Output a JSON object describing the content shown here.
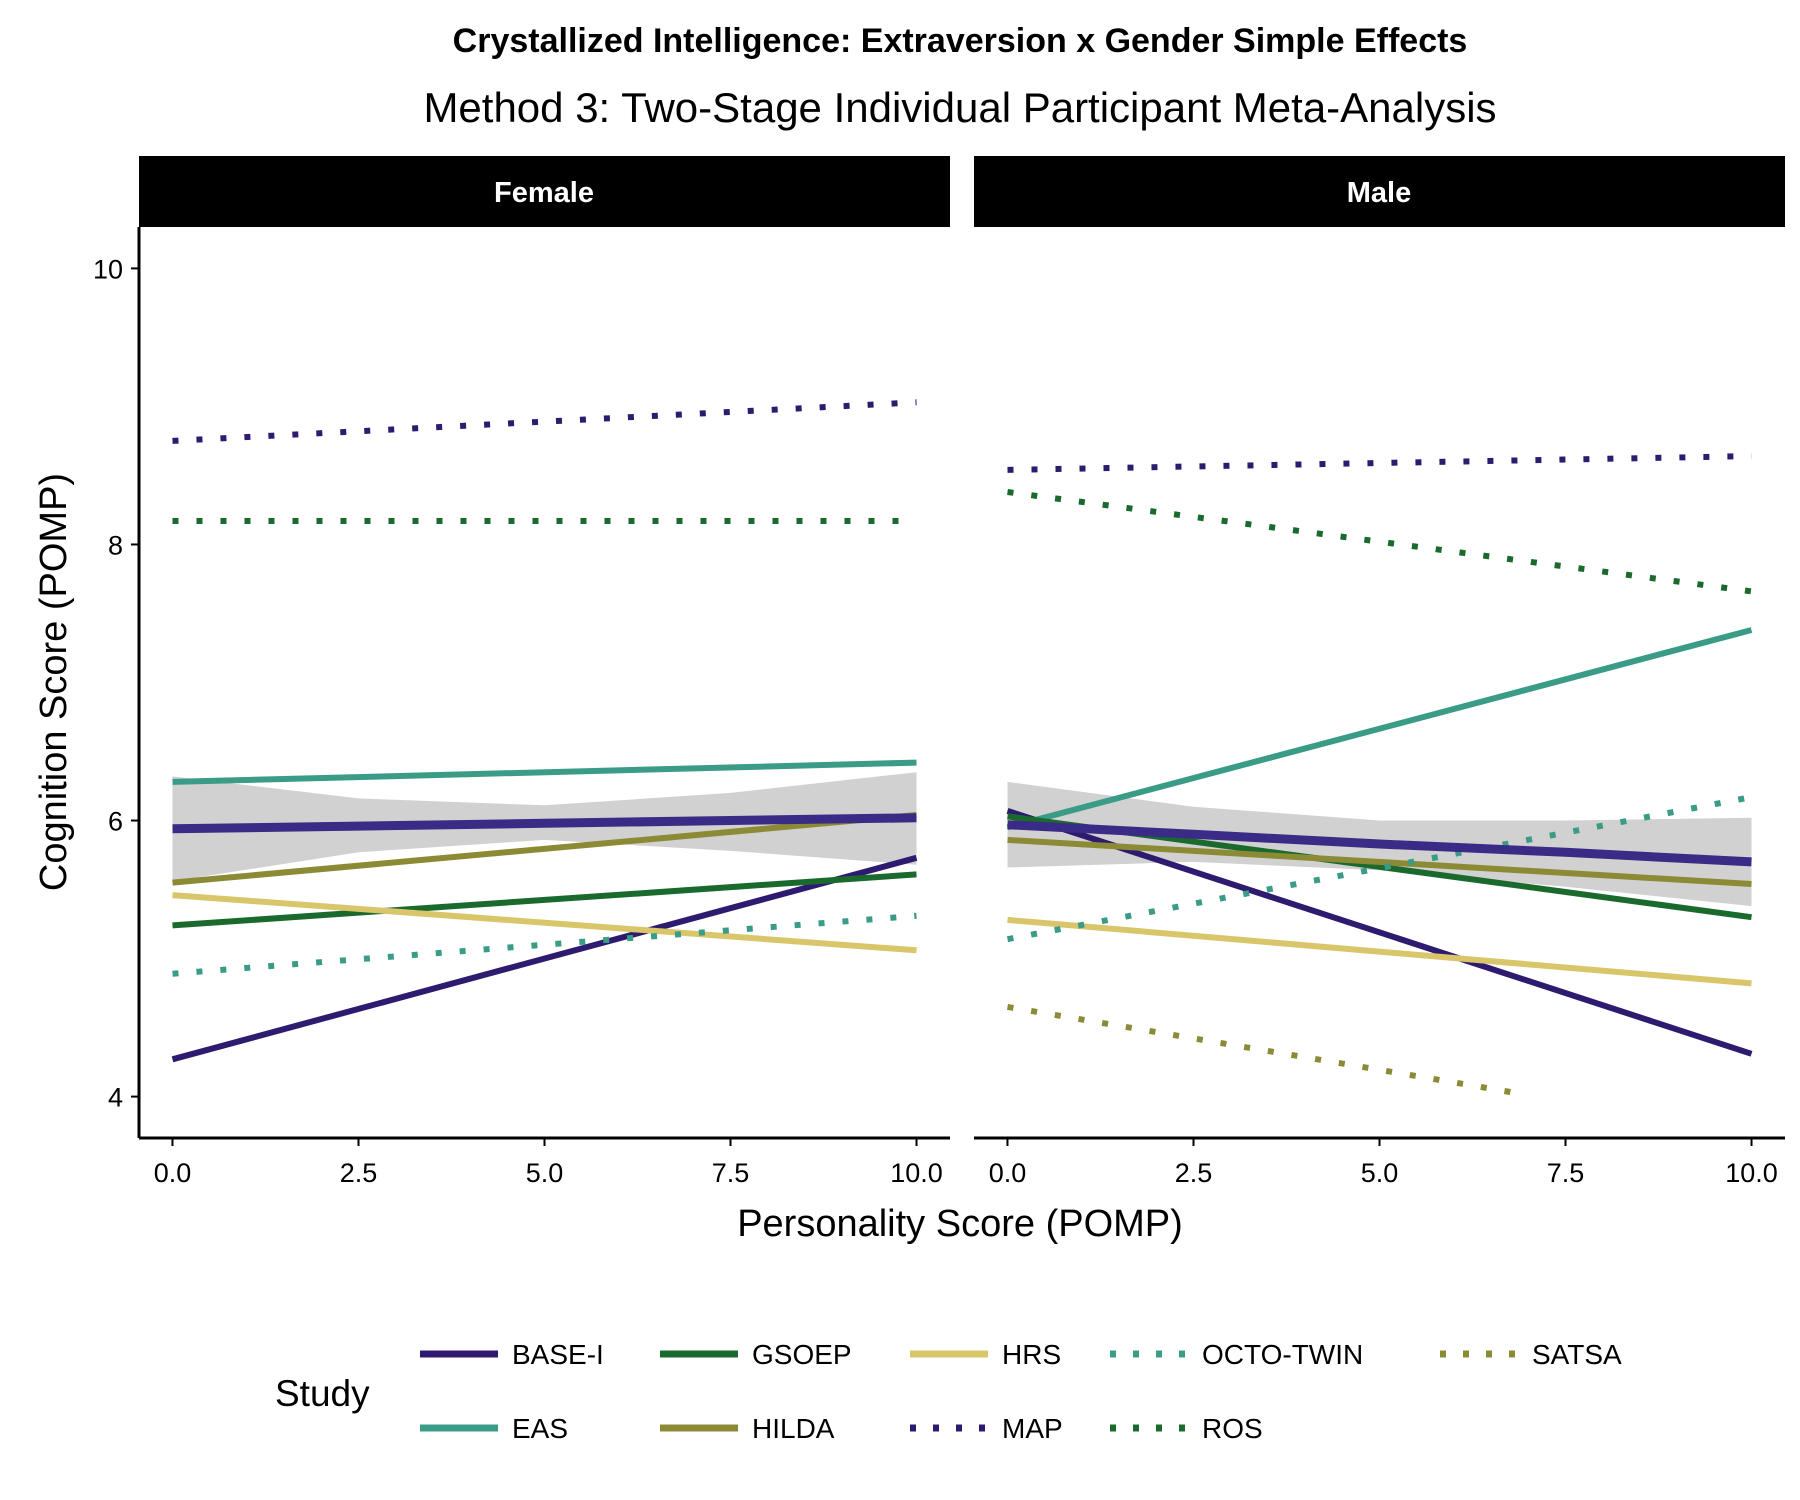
{
  "chart_data": {
    "type": "line",
    "title": "Crystallized Intelligence: Extraversion x Gender Simple Effects",
    "subtitle": "Method 3: Two-Stage Individual Participant Meta-Analysis",
    "xlabel": "Personality Score (POMP)",
    "ylabel": "Cognition Score (POMP)",
    "xlim": [
      -0.45,
      10.45
    ],
    "ylim": [
      3.7,
      10.3
    ],
    "x_ticks": [
      0,
      2.5,
      5,
      7.5,
      10
    ],
    "x_tick_labels": [
      "0.0",
      "2.5",
      "5.0",
      "7.5",
      "10.0"
    ],
    "y_ticks": [
      4,
      6,
      8,
      10
    ],
    "y_tick_labels": [
      "4",
      "6",
      "8",
      "10"
    ],
    "grid": false,
    "legend_position": "bottom",
    "legend_title": "Study",
    "legend_items": [
      {
        "label": "BASE-I",
        "color": "#2e1a6f",
        "style": "solid"
      },
      {
        "label": "EAS",
        "color": "#3a9c87",
        "style": "solid"
      },
      {
        "label": "GSOEP",
        "color": "#1a6a2e",
        "style": "solid"
      },
      {
        "label": "HILDA",
        "color": "#8b8a35",
        "style": "solid"
      },
      {
        "label": "HRS",
        "color": "#d9c56a",
        "style": "solid"
      },
      {
        "label": "MAP",
        "color": "#2e1a6f",
        "style": "dotted"
      },
      {
        "label": "OCTO-TWIN",
        "color": "#3a9c87",
        "style": "dotted"
      },
      {
        "label": "ROS",
        "color": "#1a6a2e",
        "style": "dotted"
      },
      {
        "label": "SATSA",
        "color": "#8b8a35",
        "style": "dotted"
      }
    ],
    "panels": [
      {
        "name": "Female",
        "overall": {
          "color": "#3a2b86",
          "band_color": "#cccccc",
          "x": [
            0,
            2.5,
            5,
            7.5,
            10
          ],
          "y": [
            5.94,
            5.96,
            5.98,
            6.0,
            6.02
          ],
          "lower": [
            5.56,
            5.77,
            5.86,
            5.78,
            5.68
          ],
          "upper": [
            6.32,
            6.16,
            6.11,
            6.2,
            6.35
          ]
        },
        "series": [
          {
            "name": "BASE-I",
            "x": [
              0,
              10
            ],
            "y": [
              4.27,
              5.73
            ]
          },
          {
            "name": "EAS",
            "x": [
              0,
              10
            ],
            "y": [
              6.28,
              6.42
            ]
          },
          {
            "name": "GSOEP",
            "x": [
              0,
              10
            ],
            "y": [
              5.24,
              5.61
            ]
          },
          {
            "name": "HILDA",
            "x": [
              0,
              10
            ],
            "y": [
              5.55,
              6.04
            ]
          },
          {
            "name": "HRS",
            "x": [
              0,
              10
            ],
            "y": [
              5.46,
              5.06
            ]
          },
          {
            "name": "MAP",
            "x": [
              0,
              10
            ],
            "y": [
              8.75,
              9.03
            ]
          },
          {
            "name": "OCTO-TWIN",
            "x": [
              0,
              10
            ],
            "y": [
              4.89,
              5.31
            ]
          },
          {
            "name": "ROS",
            "x": [
              0,
              10
            ],
            "y": [
              8.17,
              8.17
            ]
          }
        ]
      },
      {
        "name": "Male",
        "overall": {
          "color": "#3a2b86",
          "band_color": "#cccccc",
          "x": [
            0,
            2.5,
            5,
            7.5,
            10
          ],
          "y": [
            5.97,
            5.9,
            5.83,
            5.77,
            5.7
          ],
          "lower": [
            5.66,
            5.7,
            5.64,
            5.52,
            5.38
          ],
          "upper": [
            6.28,
            6.1,
            6.0,
            6.0,
            6.02
          ]
        },
        "series": [
          {
            "name": "BASE-I",
            "x": [
              0,
              10
            ],
            "y": [
              6.07,
              4.31
            ]
          },
          {
            "name": "EAS",
            "x": [
              0,
              10
            ],
            "y": [
              5.95,
              7.38
            ]
          },
          {
            "name": "GSOEP",
            "x": [
              0,
              10
            ],
            "y": [
              6.03,
              5.3
            ]
          },
          {
            "name": "HILDA",
            "x": [
              0,
              10
            ],
            "y": [
              5.86,
              5.54
            ]
          },
          {
            "name": "HRS",
            "x": [
              0,
              10
            ],
            "y": [
              5.28,
              4.82
            ]
          },
          {
            "name": "MAP",
            "x": [
              0,
              10
            ],
            "y": [
              8.54,
              8.64
            ]
          },
          {
            "name": "OCTO-TWIN",
            "x": [
              0,
              10
            ],
            "y": [
              5.14,
              6.17
            ]
          },
          {
            "name": "ROS",
            "x": [
              0,
              10
            ],
            "y": [
              8.38,
              7.66
            ]
          },
          {
            "name": "SATSA",
            "x": [
              0,
              6.8
            ],
            "y": [
              4.65,
              4.03
            ]
          }
        ]
      }
    ]
  }
}
